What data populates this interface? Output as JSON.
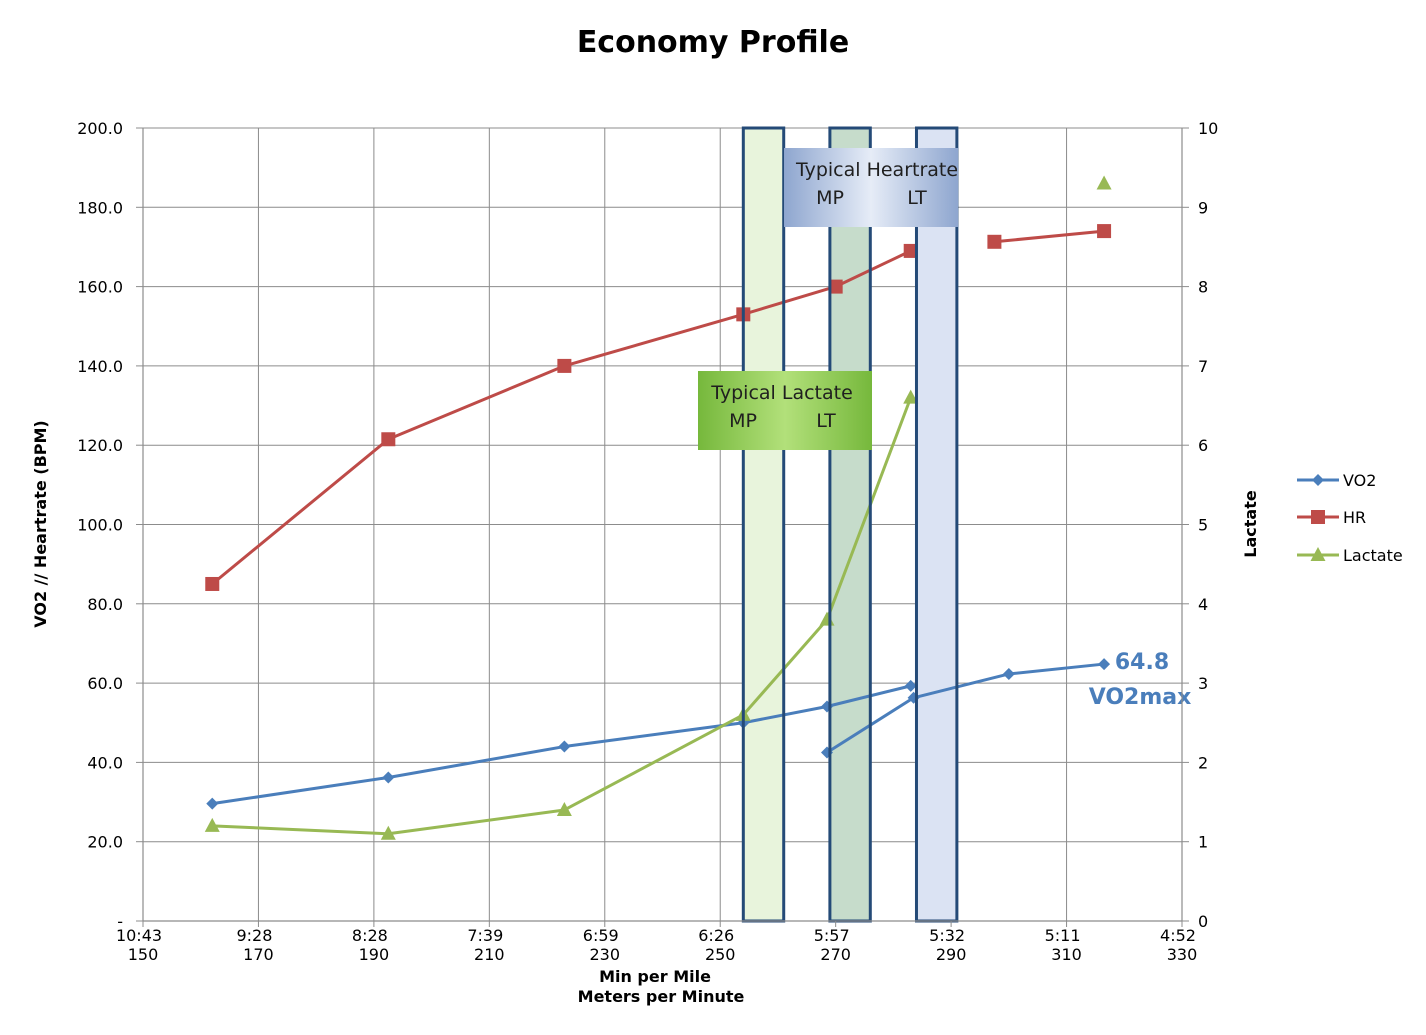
{
  "chart_data": {
    "type": "line",
    "title": "Economy Profile",
    "xlabel": [
      "Min per Mile",
      "Meters per Minute"
    ],
    "ylabel": "VO2 // Heartrate (BPM)",
    "y2label": "Lactate",
    "xlim": [
      150,
      330
    ],
    "ylim": [
      0,
      200
    ],
    "y2lim": [
      0,
      10
    ],
    "grid": true,
    "legend": "right",
    "x_ticks": [
      150,
      170,
      190,
      210,
      230,
      250,
      270,
      290,
      310,
      330
    ],
    "x_tick_labels": [
      "150",
      "170",
      "190",
      "210",
      "230",
      "250",
      "270",
      "290",
      "310",
      "330"
    ],
    "x_pace_labels": [
      "10:43",
      "9:28",
      "8:28",
      "7:39",
      "6:59",
      "6:26",
      "5:57",
      "5:32",
      "5:11",
      "4:52"
    ],
    "y_ticks": [
      0,
      20,
      40,
      60,
      80,
      100,
      120,
      140,
      160,
      180,
      200
    ],
    "y_tick_labels": [
      "-",
      "20.0",
      "40.0",
      "60.0",
      "80.0",
      "100.0",
      "120.0",
      "140.0",
      "160.0",
      "180.0",
      "200.0"
    ],
    "y2_ticks": [
      0,
      1,
      2,
      3,
      4,
      5,
      6,
      7,
      8,
      9,
      10
    ],
    "y2_tick_labels": [
      "0",
      "1",
      "2",
      "3",
      "4",
      "5",
      "6",
      "7",
      "8",
      "9",
      "10"
    ],
    "series": [
      {
        "name": "VO2",
        "axis": "left",
        "color": "#4a7ebb",
        "marker": "diamond",
        "segments": [
          [
            [
              162,
              29.6
            ],
            [
              192.5,
              36.2
            ],
            [
              223,
              44.0
            ],
            [
              254,
              50.0
            ],
            [
              268.5,
              54.1
            ],
            [
              283,
              59.3
            ]
          ],
          [
            [
              268.5,
              42.5
            ],
            [
              283.5,
              56.3
            ],
            [
              300,
              62.3
            ],
            [
              316.5,
              64.8
            ]
          ]
        ]
      },
      {
        "name": "HR",
        "axis": "left",
        "color": "#be4b48",
        "marker": "square",
        "segments": [
          [
            [
              162,
              85
            ],
            [
              192.5,
              121.5
            ],
            [
              223,
              140
            ],
            [
              254,
              153
            ],
            [
              270,
              160
            ],
            [
              283,
              169
            ]
          ],
          [
            [
              297.5,
              171.3
            ],
            [
              316.5,
              174
            ]
          ]
        ]
      },
      {
        "name": "Lactate",
        "axis": "right",
        "color": "#98b954",
        "marker": "triangle",
        "segments": [
          [
            [
              162,
              1.2
            ],
            [
              192.5,
              1.1
            ],
            [
              223,
              1.4
            ],
            [
              254,
              2.6
            ],
            [
              268.5,
              3.8
            ],
            [
              283,
              6.6
            ]
          ],
          [
            [
              316.5,
              9.3
            ]
          ]
        ]
      }
    ],
    "annotations": {
      "lactate_box": {
        "line1": "Typical Lactate",
        "mp": "MP",
        "lt": "LT"
      },
      "heartrate_box": {
        "line1": "Typical Heartrate",
        "mp": "MP",
        "lt": "LT"
      },
      "vo2max_value": "64.8",
      "vo2max_label": "VO2max"
    },
    "bands": [
      {
        "x": [
          254,
          261
        ],
        "fill": "#e8f4dc"
      },
      {
        "x": [
          269,
          276
        ],
        "fill": "#c6dccb"
      },
      {
        "x": [
          284,
          291
        ],
        "fill": "#dbe3f3"
      }
    ]
  }
}
